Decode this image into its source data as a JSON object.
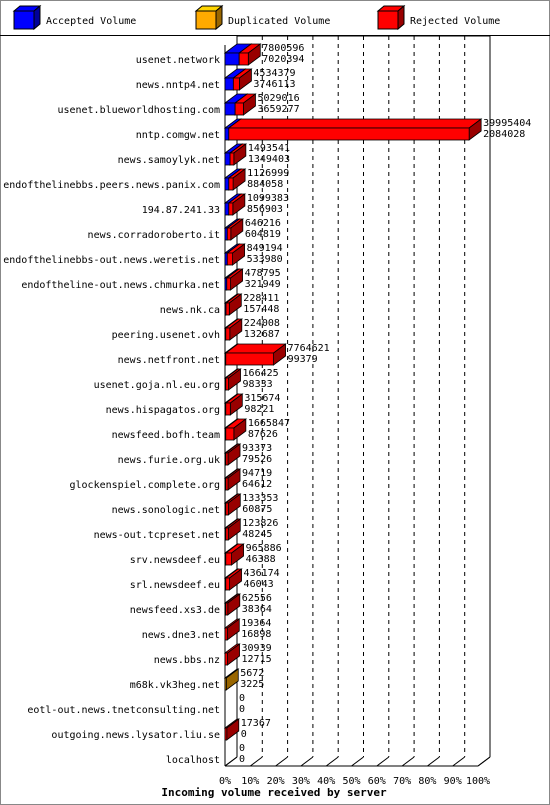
{
  "chart_data": {
    "type": "bar",
    "orientation": "horizontal",
    "stacked_3d": true,
    "title": "Incoming volume received by server",
    "xlabel": "Incoming volume received by server",
    "xlim": [
      0,
      100
    ],
    "x_unit": "%",
    "x_ticks": [
      "0%",
      "10%",
      "20%",
      "30%",
      "40%",
      "50%",
      "60%",
      "70%",
      "80%",
      "90%",
      "100%"
    ],
    "grid": true,
    "legend_placement": "top",
    "legend": [
      {
        "label": "Accepted Volume",
        "color": "#0000ff"
      },
      {
        "label": "Duplicated Volume",
        "color": "#ffaa00"
      },
      {
        "label": "Rejected Volume",
        "color": "#ff0000"
      }
    ],
    "categories": [
      "usenet.network",
      "news.nntp4.net",
      "usenet.blueworldhosting.com",
      "nntp.comgw.net",
      "news.samoylyk.net",
      "endofthelinebbs.peers.news.panix.com",
      "194.87.241.33",
      "news.corradoroberto.it",
      "endofthelinebbs-out.news.weretis.net",
      "endoftheline-out.news.chmurka.net",
      "news.nk.ca",
      "peering.usenet.ovh",
      "news.netfront.net",
      "usenet.goja.nl.eu.org",
      "news.hispagatos.org",
      "newsfeed.bofh.team",
      "news.furie.org.uk",
      "glockenspiel.complete.org",
      "news.sonologic.net",
      "news-out.tcpreset.net",
      "srv.newsdeef.eu",
      "srl.newsdeef.eu",
      "newsfeed.xs3.de",
      "news.dne3.net",
      "news.bbs.nz",
      "m68k.vk3heg.net",
      "eotl-out.news.tnetconsulting.net",
      "outgoing.news.lysator.liu.se",
      "localhost"
    ],
    "labels_top": [
      "7800596",
      "4534379",
      "5029016",
      "39995404",
      "1493541",
      "1126999",
      "1099383",
      "646216",
      "849194",
      "478795",
      "228411",
      "224008",
      "7764621",
      "166425",
      "315674",
      "1665847",
      "93373",
      "94719",
      "133353",
      "123826",
      "965886",
      "436174",
      "62556",
      "19364",
      "30939",
      "5672",
      "0",
      "17367",
      "0"
    ],
    "labels_bottom": [
      "7020394",
      "3746113",
      "3659277",
      "2084028",
      "1349403",
      "884058",
      "856903",
      "604819",
      "533980",
      "321949",
      "157448",
      "132687",
      "99379",
      "98333",
      "98221",
      "87626",
      "79526",
      "64612",
      "60875",
      "48245",
      "46388",
      "46043",
      "38364",
      "16898",
      "12715",
      "3225",
      "0",
      "0",
      "0"
    ],
    "series": [
      {
        "name": "Accepted Volume",
        "color": "#0000ff",
        "values": [
          5.6,
          3.3,
          4.0,
          1.5,
          2.0,
          1.5,
          1.5,
          0.9,
          0.9,
          0.7,
          0.4,
          0.3,
          0.3,
          0.3,
          0.3,
          0.3,
          0.3,
          0.3,
          0.3,
          0.3,
          0.3,
          0.3,
          0.3,
          0,
          0,
          0,
          0,
          0,
          0
        ]
      },
      {
        "name": "Duplicated Volume",
        "color": "#ffaa00",
        "values": [
          0,
          0,
          0,
          0,
          0,
          0,
          0,
          0,
          0,
          0,
          0,
          0,
          0,
          0,
          0,
          0,
          0,
          0,
          0,
          0,
          0,
          0,
          0,
          0,
          0,
          0.5,
          0,
          0,
          0
        ]
      },
      {
        "name": "Rejected Volume",
        "color": "#ff0000",
        "values": [
          3.6,
          2.4,
          3.3,
          95.0,
          1.5,
          1.7,
          1.6,
          1.4,
          2.1,
          1.5,
          1.3,
          1.6,
          18.9,
          1.1,
          1.8,
          3.2,
          0.9,
          0.9,
          1.0,
          1.0,
          2.3,
          1.5,
          0.8,
          0.9,
          1.0,
          0,
          0,
          0.7,
          0
        ]
      }
    ]
  }
}
